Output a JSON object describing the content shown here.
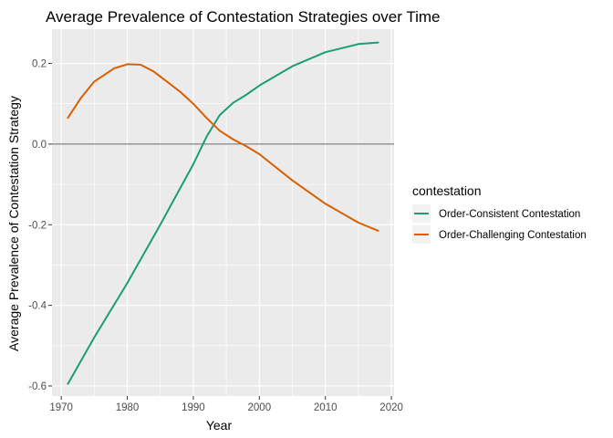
{
  "chart_data": {
    "type": "line",
    "title": "Average Prevalence of Contestation Strategies over Time",
    "xlabel": "Year",
    "ylabel": "Average Prevalence of Contestation Strategy",
    "xlim": [
      1968.6,
      2020.4
    ],
    "ylim": [
      -0.625,
      0.285
    ],
    "x_ticks": [
      1970,
      1980,
      1990,
      2000,
      2010,
      2020
    ],
    "y_ticks": [
      -0.6,
      -0.4,
      -0.2,
      0.0,
      0.2
    ],
    "y_tick_labels": [
      "-0.6",
      "-0.4",
      "-0.2",
      "0.0",
      "0.2"
    ],
    "reference_line": {
      "y": 0.0,
      "color": "#666666"
    },
    "background": "#EBEBEB",
    "grid": true,
    "legend": {
      "title": "contestation",
      "position": "right"
    },
    "series": [
      {
        "name": "Order-Consistent Contestation",
        "color": "#1B9E77",
        "x": [
          1971,
          1975,
          1980,
          1985,
          1988,
          1990,
          1992,
          1994,
          1996,
          1998,
          2000,
          2005,
          2010,
          2015,
          2018
        ],
        "y": [
          -0.595,
          -0.48,
          -0.345,
          -0.2,
          -0.11,
          -0.05,
          0.018,
          0.072,
          0.102,
          0.122,
          0.145,
          0.193,
          0.228,
          0.248,
          0.252
        ]
      },
      {
        "name": "Order-Challenging Contestation",
        "color": "#D95F02",
        "x": [
          1971,
          1973,
          1975,
          1978,
          1980,
          1982,
          1984,
          1986,
          1988,
          1990,
          1992,
          1994,
          1996,
          1998,
          2000,
          2005,
          2010,
          2015,
          2018
        ],
        "y": [
          0.065,
          0.115,
          0.155,
          0.188,
          0.198,
          0.197,
          0.18,
          0.155,
          0.13,
          0.1,
          0.065,
          0.033,
          0.012,
          -0.005,
          -0.025,
          -0.09,
          -0.148,
          -0.195,
          -0.215
        ]
      }
    ]
  }
}
